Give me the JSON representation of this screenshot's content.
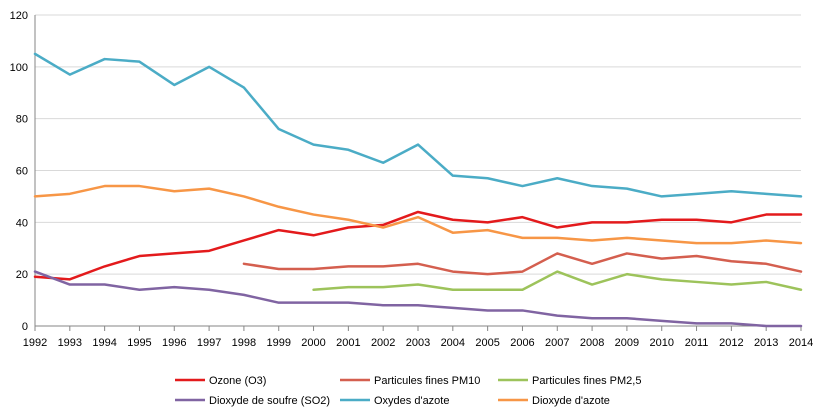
{
  "chart_data": {
    "type": "line",
    "title": "",
    "xlabel": "",
    "ylabel": "",
    "ylim": [
      0,
      120
    ],
    "yticks": [
      0,
      20,
      40,
      60,
      80,
      100,
      120
    ],
    "grid": true,
    "legend_position": "bottom",
    "categories": [
      "1992",
      "1993",
      "1994",
      "1995",
      "1996",
      "1997",
      "1998",
      "1999",
      "2000",
      "2001",
      "2002",
      "2003",
      "2004",
      "2005",
      "2006",
      "2007",
      "2008",
      "2009",
      "2010",
      "2011",
      "2012",
      "2013",
      "2014"
    ],
    "series": [
      {
        "name": "Ozone (O3)",
        "color": "#e31a1c",
        "values": [
          19,
          18,
          23,
          27,
          28,
          29,
          33,
          37,
          35,
          38,
          39,
          44,
          41,
          40,
          42,
          38,
          40,
          40,
          41,
          41,
          40,
          43,
          43
        ]
      },
      {
        "name": "Particules fines PM10",
        "color": "#d45f4f",
        "values": [
          null,
          null,
          null,
          null,
          null,
          null,
          24,
          22,
          22,
          23,
          23,
          24,
          21,
          20,
          21,
          28,
          24,
          28,
          26,
          27,
          25,
          24,
          21
        ]
      },
      {
        "name": "Particules fines PM2,5",
        "color": "#9dc35b",
        "values": [
          null,
          null,
          null,
          null,
          null,
          null,
          null,
          null,
          14,
          15,
          15,
          16,
          14,
          14,
          14,
          21,
          16,
          20,
          18,
          17,
          16,
          17,
          14
        ]
      },
      {
        "name": "Dioxyde de soufre (SO2)",
        "color": "#8064a2",
        "values": [
          21,
          16,
          16,
          14,
          15,
          14,
          12,
          9,
          9,
          9,
          8,
          8,
          7,
          6,
          6,
          4,
          3,
          3,
          2,
          1,
          1,
          0,
          0
        ]
      },
      {
        "name": "Oxydes d'azote",
        "color": "#4bacc6",
        "values": [
          105,
          97,
          103,
          102,
          93,
          100,
          92,
          76,
          70,
          68,
          63,
          70,
          58,
          57,
          54,
          57,
          54,
          53,
          50,
          51,
          52,
          51,
          50
        ]
      },
      {
        "name": "Dioxyde d'azote",
        "color": "#f79646",
        "values": [
          50,
          51,
          54,
          54,
          52,
          53,
          50,
          46,
          43,
          41,
          38,
          42,
          36,
          37,
          34,
          34,
          33,
          34,
          33,
          32,
          32,
          33,
          32
        ]
      }
    ]
  }
}
